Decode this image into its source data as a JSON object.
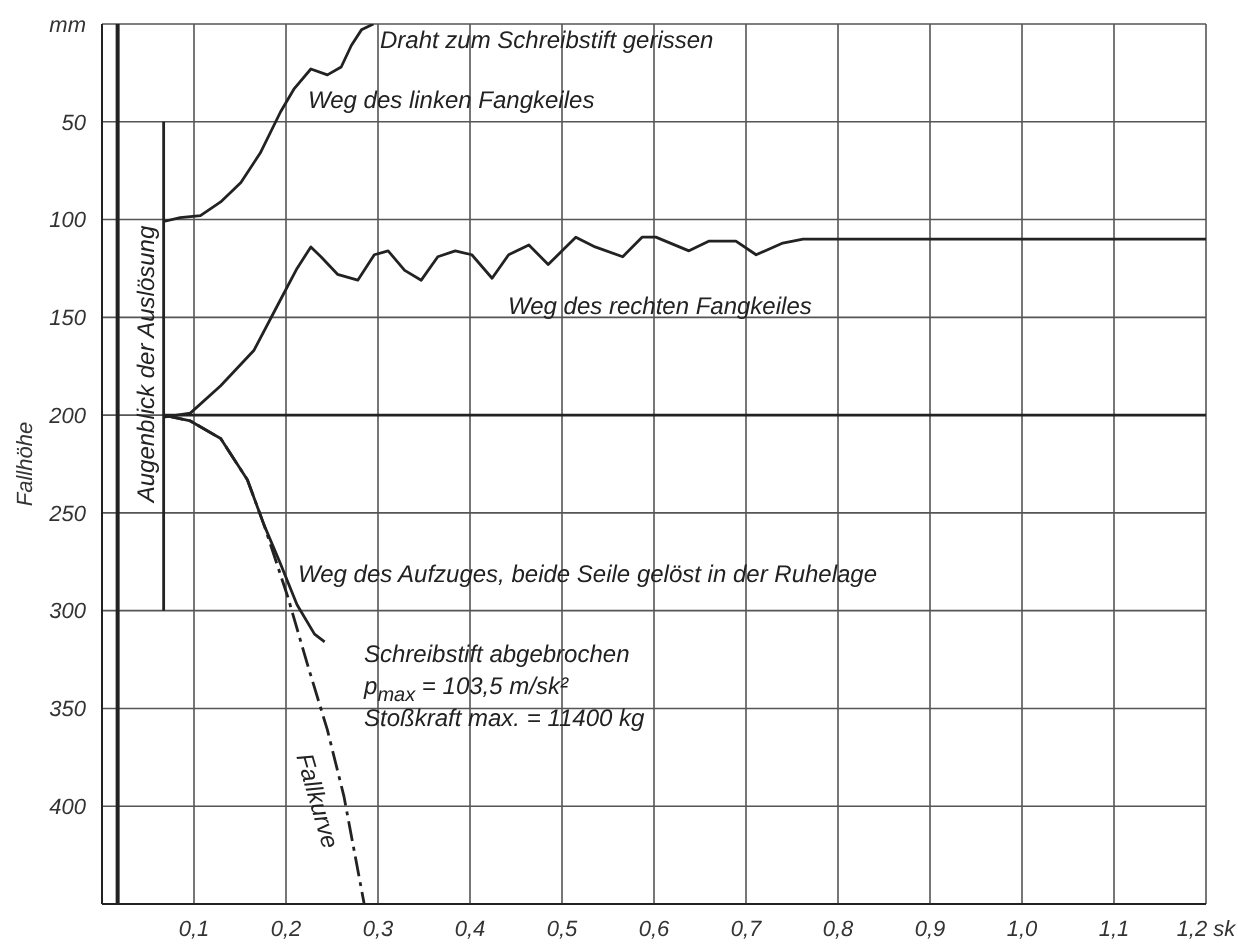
{
  "chart_data": {
    "type": "line",
    "ylabel": "Fallhöhe",
    "xlim": [
      0,
      1.2
    ],
    "xticks": [
      {
        "value": 0.1,
        "label": "0,1"
      },
      {
        "value": 0.2,
        "label": "0,2"
      },
      {
        "value": 0.3,
        "label": "0,3"
      },
      {
        "value": 0.4,
        "label": "0,4"
      },
      {
        "value": 0.5,
        "label": "0,5"
      },
      {
        "value": 0.6,
        "label": "0,6"
      },
      {
        "value": 0.7,
        "label": "0,7"
      },
      {
        "value": 0.8,
        "label": "0,8"
      },
      {
        "value": 0.9,
        "label": "0,9"
      },
      {
        "value": 1.0,
        "label": "1,0"
      },
      {
        "value": 1.1,
        "label": "1,1"
      },
      {
        "value": 1.2,
        "label": "1,2 sk"
      }
    ],
    "ylim": [
      450,
      0
    ],
    "yticks": [
      {
        "value": 0,
        "label": "mm"
      },
      50,
      100,
      150,
      200,
      250,
      300,
      350,
      400
    ],
    "grid": true,
    "marker": "none",
    "series": [
      {
        "color": "#222222",
        "x": [
          0.067,
          0.085,
          0.107,
          0.129,
          0.151,
          0.172,
          0.194,
          0.209,
          0.227,
          0.245,
          0.26,
          0.271,
          0.282,
          0.295
        ],
        "values": [
          101,
          99,
          98,
          91,
          81,
          66,
          45,
          33,
          23,
          26,
          22,
          11,
          3,
          0
        ]
      },
      {
        "color": "#222222",
        "x": [
          0.067,
          0.096,
          0.129,
          0.165,
          0.194,
          0.212,
          0.227,
          0.238,
          0.256,
          0.278,
          0.296,
          0.311,
          0.329,
          0.347,
          0.365,
          0.384,
          0.402,
          0.424,
          0.442,
          0.464,
          0.485,
          0.515,
          0.536,
          0.566,
          0.587,
          0.602,
          0.638,
          0.66,
          0.689,
          0.711,
          0.74,
          0.762,
          1.2
        ],
        "values": [
          201,
          199,
          185,
          167,
          141,
          125,
          114,
          119,
          128,
          131,
          118,
          116,
          126,
          131,
          119,
          116,
          118,
          130,
          118,
          113,
          123,
          109,
          114,
          119,
          109,
          109,
          116,
          111,
          111,
          118,
          112,
          110,
          110
        ]
      },
      {
        "color": "#222222",
        "x": [
          0.067,
          0.096,
          0.129,
          0.158,
          0.176,
          0.194,
          0.212,
          0.231,
          0.242
        ],
        "values": [
          200,
          203,
          212,
          233,
          256,
          276,
          297,
          312,
          316
        ]
      },
      {
        "color": "#222222",
        "line_style": "dashed",
        "x": [
          0.067,
          0.096,
          0.129,
          0.158,
          0.176,
          0.202,
          0.223,
          0.245,
          0.263,
          0.285
        ],
        "values": [
          200,
          203,
          212,
          233,
          256,
          293,
          327,
          361,
          395,
          450
        ]
      },
      {
        "color": "#222222",
        "x": [
          0.067,
          1.2
        ],
        "values": [
          200,
          200
        ]
      },
      {
        "color": "#222222",
        "x": [
          0.067,
          0.067
        ],
        "values": [
          50,
          300
        ]
      }
    ],
    "ref_lines": [
      {
        "axis": "x",
        "value": 0.017,
        "color": "#222222"
      }
    ],
    "annotations": [
      "Draht zum Schreibstift gerissen",
      "Weg des linken Fangkeiles",
      "Weg des rechten Fangkeiles",
      "Weg des Aufzuges, beide Seile gelöst in der Ruhelage",
      "Schreibstift abgebrochen",
      "p$_{max}$ = 103,5 m/sk²",
      "Stoßkraft max. = 11400 kg",
      "Fallkurve",
      "Augenblick der Auslösung"
    ]
  }
}
